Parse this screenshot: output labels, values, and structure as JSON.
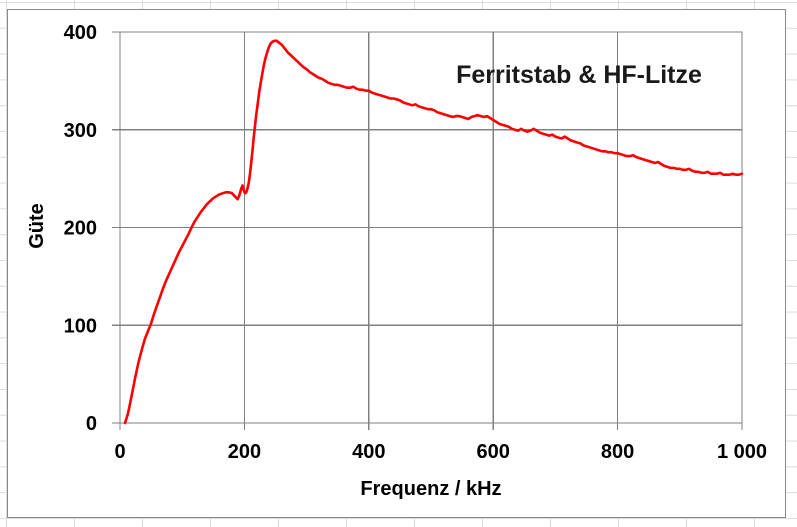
{
  "sheet": {
    "background": "#ffffff",
    "cell_grid_color": "#dcdcdc"
  },
  "chart_frame": {
    "background": "#ffffff",
    "border_color": "#8a8a8a"
  },
  "chart_data": {
    "type": "line",
    "title": "Ferritstab & HF-Litze",
    "xlabel": "Frequenz / kHz",
    "ylabel": "Güte",
    "xlim": [
      0,
      1000
    ],
    "ylim": [
      0,
      400
    ],
    "grid": true,
    "legend_position": "none",
    "x_ticks": [
      {
        "value": 0,
        "label": "0"
      },
      {
        "value": 200,
        "label": "200"
      },
      {
        "value": 400,
        "label": "400"
      },
      {
        "value": 600,
        "label": "600"
      },
      {
        "value": 800,
        "label": "800"
      },
      {
        "value": 1000,
        "label": "1 000"
      }
    ],
    "y_ticks": [
      {
        "value": 0,
        "label": "0"
      },
      {
        "value": 100,
        "label": "100"
      },
      {
        "value": 200,
        "label": "200"
      },
      {
        "value": 300,
        "label": "300"
      },
      {
        "value": 400,
        "label": "400"
      }
    ],
    "colors": {
      "series": "#fe0000",
      "grid": "#808080",
      "axis": "#808080",
      "text": "#000000"
    },
    "series": [
      {
        "name": "Güte",
        "color": "#fe0000",
        "points": [
          [
            8,
            0
          ],
          [
            12,
            8
          ],
          [
            15,
            16
          ],
          [
            20,
            32
          ],
          [
            25,
            48
          ],
          [
            30,
            63
          ],
          [
            35,
            75
          ],
          [
            40,
            86
          ],
          [
            45,
            94
          ],
          [
            50,
            102
          ],
          [
            55,
            112
          ],
          [
            60,
            121
          ],
          [
            65,
            130
          ],
          [
            70,
            139
          ],
          [
            75,
            147
          ],
          [
            80,
            154
          ],
          [
            85,
            161
          ],
          [
            90,
            168
          ],
          [
            95,
            175
          ],
          [
            100,
            181
          ],
          [
            105,
            187
          ],
          [
            110,
            193
          ],
          [
            115,
            200
          ],
          [
            120,
            206
          ],
          [
            125,
            211
          ],
          [
            130,
            216
          ],
          [
            135,
            220
          ],
          [
            140,
            224
          ],
          [
            145,
            227
          ],
          [
            150,
            230
          ],
          [
            155,
            232
          ],
          [
            160,
            234
          ],
          [
            165,
            235
          ],
          [
            170,
            236
          ],
          [
            175,
            236
          ],
          [
            180,
            235
          ],
          [
            183,
            233
          ],
          [
            186,
            231
          ],
          [
            189,
            229
          ],
          [
            192,
            233
          ],
          [
            195,
            240
          ],
          [
            197,
            243
          ],
          [
            199,
            238
          ],
          [
            201,
            235
          ],
          [
            203,
            236
          ],
          [
            205,
            240
          ],
          [
            207,
            246
          ],
          [
            209,
            255
          ],
          [
            211,
            266
          ],
          [
            213,
            279
          ],
          [
            215,
            292
          ],
          [
            217,
            304
          ],
          [
            219,
            315
          ],
          [
            221,
            325
          ],
          [
            224,
            339
          ],
          [
            227,
            351
          ],
          [
            230,
            362
          ],
          [
            233,
            371
          ],
          [
            236,
            378
          ],
          [
            239,
            384
          ],
          [
            242,
            388
          ],
          [
            245,
            390
          ],
          [
            248,
            391
          ],
          [
            252,
            391
          ],
          [
            256,
            389
          ],
          [
            260,
            387
          ],
          [
            265,
            383
          ],
          [
            270,
            379
          ],
          [
            275,
            376
          ],
          [
            280,
            373
          ],
          [
            285,
            370
          ],
          [
            290,
            367
          ],
          [
            295,
            364
          ],
          [
            300,
            362
          ],
          [
            305,
            359
          ],
          [
            310,
            357
          ],
          [
            315,
            355
          ],
          [
            320,
            353
          ],
          [
            325,
            352
          ],
          [
            330,
            350
          ],
          [
            335,
            348
          ],
          [
            340,
            347
          ],
          [
            345,
            346
          ],
          [
            350,
            346
          ],
          [
            355,
            345
          ],
          [
            360,
            344
          ],
          [
            365,
            343
          ],
          [
            370,
            343
          ],
          [
            375,
            344
          ],
          [
            380,
            342
          ],
          [
            385,
            341
          ],
          [
            390,
            341
          ],
          [
            395,
            340
          ],
          [
            400,
            340
          ],
          [
            405,
            338
          ],
          [
            410,
            337
          ],
          [
            415,
            336
          ],
          [
            420,
            335
          ],
          [
            425,
            334
          ],
          [
            430,
            333
          ],
          [
            435,
            332
          ],
          [
            440,
            332
          ],
          [
            445,
            331
          ],
          [
            450,
            330
          ],
          [
            455,
            328
          ],
          [
            460,
            327
          ],
          [
            465,
            326
          ],
          [
            470,
            325
          ],
          [
            475,
            326
          ],
          [
            480,
            324
          ],
          [
            485,
            323
          ],
          [
            490,
            322
          ],
          [
            495,
            321
          ],
          [
            500,
            321
          ],
          [
            505,
            320
          ],
          [
            510,
            318
          ],
          [
            515,
            317
          ],
          [
            520,
            316
          ],
          [
            525,
            315
          ],
          [
            530,
            314
          ],
          [
            535,
            313
          ],
          [
            540,
            314
          ],
          [
            545,
            314
          ],
          [
            550,
            313
          ],
          [
            555,
            312
          ],
          [
            560,
            311
          ],
          [
            565,
            313
          ],
          [
            570,
            314
          ],
          [
            575,
            315
          ],
          [
            580,
            314
          ],
          [
            585,
            313
          ],
          [
            590,
            314
          ],
          [
            595,
            312
          ],
          [
            600,
            310
          ],
          [
            605,
            308
          ],
          [
            610,
            306
          ],
          [
            615,
            305
          ],
          [
            620,
            304
          ],
          [
            625,
            303
          ],
          [
            630,
            301
          ],
          [
            635,
            300
          ],
          [
            640,
            299
          ],
          [
            645,
            301
          ],
          [
            650,
            299
          ],
          [
            655,
            298
          ],
          [
            660,
            299
          ],
          [
            665,
            301
          ],
          [
            670,
            299
          ],
          [
            675,
            297
          ],
          [
            680,
            296
          ],
          [
            685,
            295
          ],
          [
            690,
            294
          ],
          [
            695,
            295
          ],
          [
            700,
            293
          ],
          [
            705,
            292
          ],
          [
            710,
            291
          ],
          [
            715,
            293
          ],
          [
            720,
            291
          ],
          [
            725,
            289
          ],
          [
            730,
            288
          ],
          [
            735,
            287
          ],
          [
            740,
            286
          ],
          [
            745,
            284
          ],
          [
            750,
            283
          ],
          [
            755,
            282
          ],
          [
            760,
            281
          ],
          [
            765,
            280
          ],
          [
            770,
            279
          ],
          [
            775,
            278
          ],
          [
            780,
            278
          ],
          [
            785,
            277
          ],
          [
            790,
            277
          ],
          [
            795,
            276
          ],
          [
            800,
            276
          ],
          [
            805,
            275
          ],
          [
            810,
            274
          ],
          [
            815,
            273
          ],
          [
            820,
            273
          ],
          [
            825,
            274
          ],
          [
            830,
            272
          ],
          [
            835,
            271
          ],
          [
            840,
            270
          ],
          [
            845,
            269
          ],
          [
            850,
            268
          ],
          [
            855,
            267
          ],
          [
            860,
            266
          ],
          [
            865,
            267
          ],
          [
            870,
            265
          ],
          [
            875,
            263
          ],
          [
            880,
            262
          ],
          [
            885,
            261
          ],
          [
            890,
            261
          ],
          [
            895,
            260
          ],
          [
            900,
            260
          ],
          [
            905,
            259
          ],
          [
            910,
            259
          ],
          [
            915,
            260
          ],
          [
            920,
            258
          ],
          [
            925,
            257
          ],
          [
            930,
            257
          ],
          [
            935,
            256
          ],
          [
            940,
            256
          ],
          [
            945,
            257
          ],
          [
            950,
            255
          ],
          [
            955,
            255
          ],
          [
            960,
            255
          ],
          [
            965,
            256
          ],
          [
            970,
            254
          ],
          [
            975,
            254
          ],
          [
            980,
            254
          ],
          [
            985,
            255
          ],
          [
            990,
            254
          ],
          [
            995,
            254
          ],
          [
            1000,
            255
          ]
        ]
      }
    ]
  }
}
